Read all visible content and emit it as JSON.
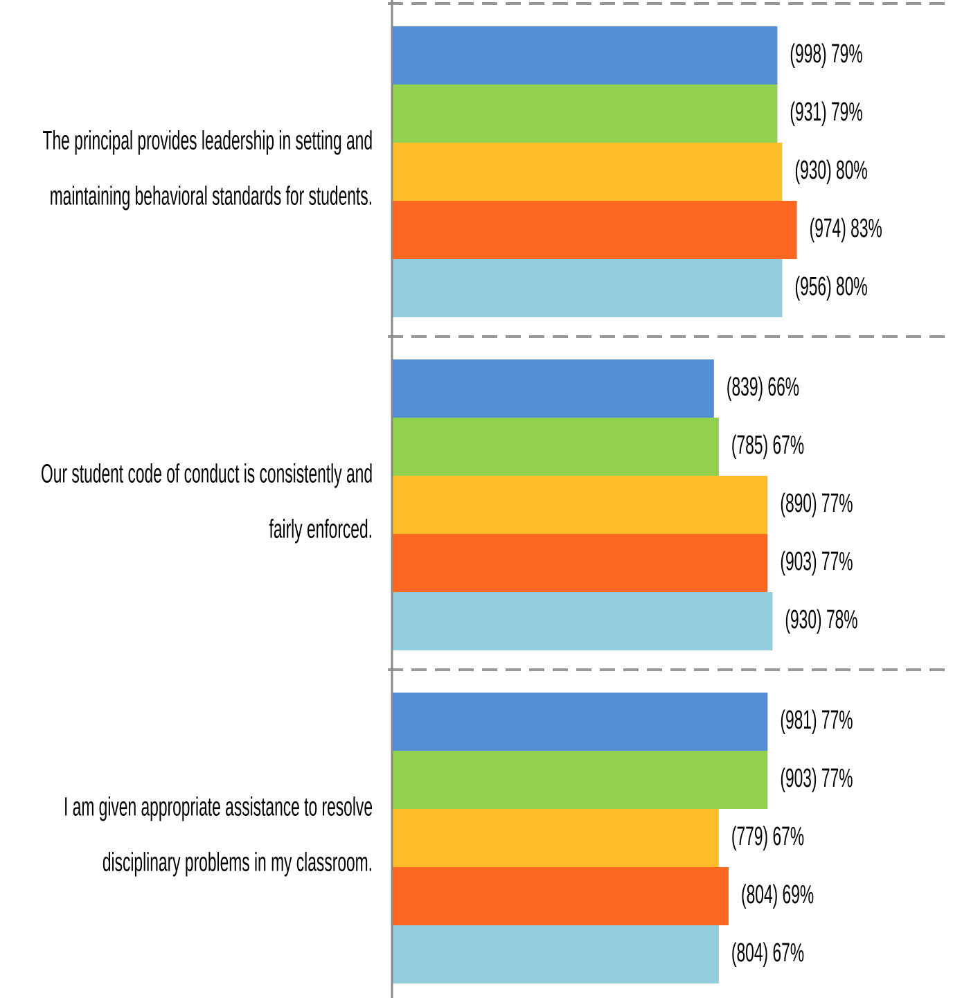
{
  "chart_data": {
    "type": "hbar",
    "categories": [
      [
        "The principal provides leadership in setting and",
        "maintaining behavioral standards for students."
      ],
      [
        "Our student code of conduct is consistently and",
        "fairly enforced."
      ],
      [
        "I am given appropriate assistance to resolve",
        "disciplinary problems in my classroom."
      ]
    ],
    "series": [
      {
        "color": "#558ed5",
        "values": [
          79,
          66,
          77
        ],
        "value_labels": [
          "(998) 79%",
          "(839) 66%",
          "(981) 77%"
        ]
      },
      {
        "color": "#92d050",
        "values": [
          79,
          67,
          77
        ],
        "value_labels": [
          "(931) 79%",
          "(785) 67%",
          "(903) 77%"
        ]
      },
      {
        "color": "#febe2b",
        "values": [
          80,
          77,
          67
        ],
        "value_labels": [
          "(930) 80%",
          "(890) 77%",
          "(779) 67%"
        ]
      },
      {
        "color": "#fe6820",
        "values": [
          83,
          77,
          69
        ],
        "value_labels": [
          "(974) 83%",
          "(903) 77%",
          "(804) 69%"
        ]
      },
      {
        "color": "#93cddd",
        "values": [
          80,
          78,
          67
        ],
        "value_labels": [
          "(956) 80%",
          "(930) 78%",
          "(804) 67%"
        ]
      }
    ],
    "xlim": [
      0,
      115
    ]
  }
}
